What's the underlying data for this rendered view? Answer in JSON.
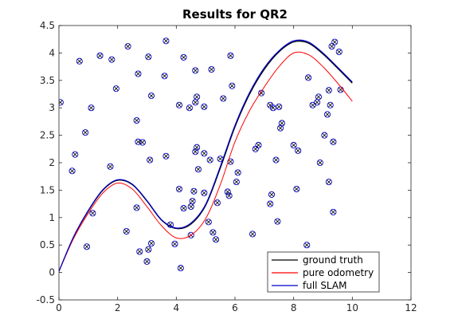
{
  "chart_data": {
    "type": "line",
    "title": "Results for QR2",
    "xlabel": "",
    "ylabel": "",
    "xlim": [
      0,
      12
    ],
    "ylim": [
      -0.5,
      4.5
    ],
    "x_ticks": [
      "0",
      "2",
      "4",
      "6",
      "8",
      "10",
      "12"
    ],
    "y_ticks": [
      "-0.5",
      "0",
      "0.5",
      "1",
      "1.5",
      "2",
      "2.5",
      "3",
      "3.5",
      "4",
      "4.5"
    ],
    "grid": false,
    "legend_position": "bottom-right",
    "series": [
      {
        "name": "ground truth",
        "color": "#000000",
        "x": [
          0,
          0.5,
          1,
          1.5,
          2,
          2.5,
          3,
          3.5,
          4,
          4.5,
          5,
          5.5,
          6,
          6.5,
          7,
          7.5,
          8,
          8.5,
          9,
          9.5,
          10
        ],
        "y": [
          0.02,
          0.65,
          1.12,
          1.5,
          1.68,
          1.6,
          1.3,
          0.95,
          0.8,
          0.88,
          1.22,
          1.9,
          2.65,
          3.25,
          3.7,
          4.02,
          4.2,
          4.18,
          3.98,
          3.72,
          3.45
        ]
      },
      {
        "name": "pure odometry",
        "color": "#ff0000",
        "x": [
          0,
          0.5,
          1,
          1.5,
          2,
          2.5,
          3,
          3.5,
          4,
          4.5,
          5,
          5.5,
          6,
          6.5,
          7,
          7.5,
          8,
          8.5,
          9,
          9.5,
          10
        ],
        "y": [
          0.02,
          0.62,
          1.08,
          1.45,
          1.63,
          1.52,
          1.2,
          0.85,
          0.63,
          0.68,
          0.98,
          1.6,
          2.38,
          2.95,
          3.38,
          3.75,
          4.0,
          3.97,
          3.75,
          3.45,
          3.12
        ]
      },
      {
        "name": "full SLAM",
        "color": "#0000cc",
        "x": [
          0,
          0.5,
          1,
          1.5,
          2,
          2.5,
          3,
          3.5,
          4,
          4.5,
          5,
          5.5,
          6,
          6.5,
          7,
          7.5,
          8,
          8.5,
          9,
          9.5,
          10
        ],
        "y": [
          0.02,
          0.65,
          1.13,
          1.51,
          1.69,
          1.61,
          1.31,
          0.96,
          0.81,
          0.9,
          1.24,
          1.93,
          2.68,
          3.28,
          3.73,
          4.04,
          4.22,
          4.2,
          4.0,
          3.74,
          3.47
        ]
      }
    ],
    "landmarks": {
      "marker": "circle-x",
      "color": "#0000cc",
      "points": [
        [
          0.05,
          3.1
        ],
        [
          0.45,
          1.85
        ],
        [
          0.55,
          2.15
        ],
        [
          0.7,
          3.85
        ],
        [
          0.9,
          2.55
        ],
        [
          0.95,
          0.47
        ],
        [
          1.1,
          3.0
        ],
        [
          1.15,
          1.08
        ],
        [
          1.4,
          3.95
        ],
        [
          1.75,
          1.93
        ],
        [
          1.8,
          3.88
        ],
        [
          1.95,
          3.35
        ],
        [
          2.3,
          0.75
        ],
        [
          2.35,
          4.12
        ],
        [
          2.65,
          1.18
        ],
        [
          2.65,
          2.77
        ],
        [
          2.7,
          2.38
        ],
        [
          2.7,
          3.62
        ],
        [
          2.75,
          0.38
        ],
        [
          2.85,
          2.37
        ],
        [
          3.0,
          0.2
        ],
        [
          3.05,
          3.93
        ],
        [
          3.05,
          0.42
        ],
        [
          3.1,
          2.05
        ],
        [
          3.15,
          3.22
        ],
        [
          3.15,
          0.53
        ],
        [
          3.6,
          3.58
        ],
        [
          3.65,
          2.12
        ],
        [
          3.65,
          4.22
        ],
        [
          3.8,
          0.87
        ],
        [
          3.95,
          0.52
        ],
        [
          4.1,
          1.52
        ],
        [
          4.1,
          3.05
        ],
        [
          4.15,
          0.08
        ],
        [
          4.25,
          3.92
        ],
        [
          4.25,
          1.17
        ],
        [
          4.45,
          3.0
        ],
        [
          4.5,
          0.68
        ],
        [
          4.5,
          1.2
        ],
        [
          4.55,
          1.3
        ],
        [
          4.6,
          1.48
        ],
        [
          4.65,
          3.68
        ],
        [
          4.65,
          3.1
        ],
        [
          4.65,
          2.2
        ],
        [
          4.7,
          3.2
        ],
        [
          4.7,
          2.28
        ],
        [
          4.75,
          1.88
        ],
        [
          4.95,
          3.02
        ],
        [
          4.95,
          2.17
        ],
        [
          4.95,
          1.45
        ],
        [
          5.1,
          0.92
        ],
        [
          5.15,
          2.05
        ],
        [
          5.2,
          3.7
        ],
        [
          5.25,
          0.73
        ],
        [
          5.35,
          0.6
        ],
        [
          5.4,
          1.27
        ],
        [
          5.5,
          2.07
        ],
        [
          5.6,
          3.17
        ],
        [
          5.75,
          1.47
        ],
        [
          5.8,
          1.4
        ],
        [
          5.85,
          3.95
        ],
        [
          5.85,
          2.02
        ],
        [
          5.9,
          3.4
        ],
        [
          6.05,
          1.65
        ],
        [
          6.1,
          1.82
        ],
        [
          6.6,
          0.7
        ],
        [
          6.7,
          2.25
        ],
        [
          6.8,
          2.32
        ],
        [
          6.9,
          3.27
        ],
        [
          7.2,
          1.25
        ],
        [
          7.2,
          3.05
        ],
        [
          7.25,
          1.42
        ],
        [
          7.3,
          3.0
        ],
        [
          7.4,
          2.05
        ],
        [
          7.45,
          0.93
        ],
        [
          7.5,
          3.02
        ],
        [
          7.55,
          2.63
        ],
        [
          7.6,
          2.72
        ],
        [
          8.0,
          2.32
        ],
        [
          8.1,
          1.52
        ],
        [
          8.15,
          2.22
        ],
        [
          8.45,
          0.5
        ],
        [
          8.5,
          3.55
        ],
        [
          8.65,
          3.05
        ],
        [
          8.8,
          3.1
        ],
        [
          8.85,
          3.2
        ],
        [
          8.9,
          2.0
        ],
        [
          9.05,
          2.5
        ],
        [
          9.15,
          2.88
        ],
        [
          9.2,
          3.32
        ],
        [
          9.2,
          1.65
        ],
        [
          9.25,
          3.05
        ],
        [
          9.3,
          4.12
        ],
        [
          9.35,
          2.38
        ],
        [
          9.35,
          1.1
        ],
        [
          9.4,
          4.2
        ],
        [
          9.55,
          4.02
        ],
        [
          9.6,
          3.33
        ]
      ]
    }
  }
}
